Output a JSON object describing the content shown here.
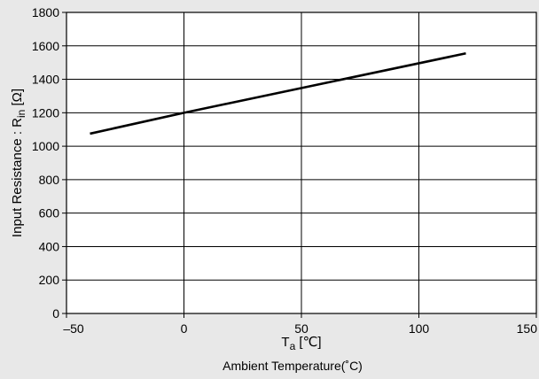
{
  "chart_data": {
    "type": "line",
    "xlim": [
      -50,
      150
    ],
    "ylim": [
      0,
      1800
    ],
    "x_ticks": [
      -50,
      0,
      50,
      100,
      150
    ],
    "y_ticks": [
      0,
      200,
      400,
      600,
      800,
      1000,
      1200,
      1400,
      1600,
      1800
    ],
    "x_tick_labels": [
      "–50",
      "0",
      "50",
      "100",
      "150"
    ],
    "y_tick_labels": [
      "0",
      "200",
      "400",
      "600",
      "800",
      "1000",
      "1200",
      "1400",
      "1600",
      "1800"
    ],
    "grid": true,
    "xlabel": {
      "symbol": "T",
      "subscript": "a",
      "unit": " [℃]",
      "caption": "Ambient Temperature(˚C)"
    },
    "ylabel": {
      "text": "Input Resistance : R",
      "subscript": "in",
      "unit": " [Ω]"
    },
    "series": [
      {
        "x": [
          -40,
          0,
          120
        ],
        "y": [
          1075,
          1200,
          1555
        ],
        "color": "#000000"
      }
    ],
    "colors": {
      "background": "#e8e8e8",
      "plot_background": "#ffffff",
      "grid": "#000000",
      "line": "#000000"
    }
  }
}
